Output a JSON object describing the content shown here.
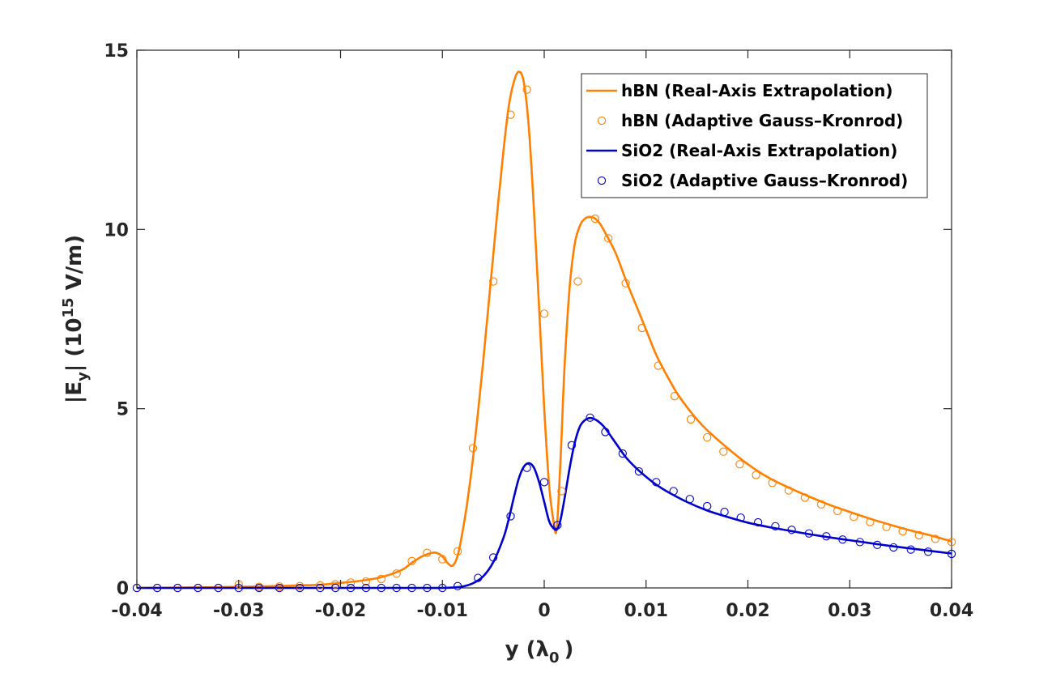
{
  "chart_data": {
    "type": "line",
    "xlabel": "y (λ",
    "xlabel_sub": "0",
    "xlabel_end": ")",
    "ylabel_parts": {
      "pre": "|E",
      "sub": "y",
      "mid": "| (10",
      "sup": "15",
      "post": " V/m)"
    },
    "xlim": [
      -0.04,
      0.04
    ],
    "ylim": [
      0,
      15
    ],
    "xticks": [
      -0.04,
      -0.03,
      -0.02,
      -0.01,
      0,
      0.01,
      0.02,
      0.03,
      0.04
    ],
    "xtick_labels": [
      "-0.04",
      "-0.03",
      "-0.02",
      "-0.01",
      "0",
      "0.01",
      "0.02",
      "0.03",
      "0.04"
    ],
    "yticks": [
      0,
      5,
      10,
      15
    ],
    "ytick_labels": [
      "0",
      "5",
      "10",
      "15"
    ],
    "grid": false,
    "legend_position": "top-right",
    "series": [
      {
        "name": "hBN (Real-Axis Extrapolation)",
        "style": "line",
        "color": "#ff8000",
        "x": [
          -0.04,
          -0.035,
          -0.03,
          -0.025,
          -0.022,
          -0.02,
          -0.018,
          -0.016,
          -0.014,
          -0.013,
          -0.012,
          -0.011,
          -0.0105,
          -0.01,
          -0.0095,
          -0.009,
          -0.0085,
          -0.008,
          -0.0075,
          -0.007,
          -0.0065,
          -0.006,
          -0.0055,
          -0.005,
          -0.0045,
          -0.004,
          -0.0035,
          -0.003,
          -0.0025,
          -0.002,
          -0.0015,
          -0.001,
          -0.0005,
          0,
          0.0005,
          0.001,
          0.0012,
          0.0014,
          0.0017,
          0.002,
          0.0025,
          0.003,
          0.0035,
          0.004,
          0.0045,
          0.005,
          0.0055,
          0.006,
          0.007,
          0.008,
          0.009,
          0.01,
          0.011,
          0.012,
          0.013,
          0.014,
          0.015,
          0.016,
          0.018,
          0.02,
          0.022,
          0.024,
          0.026,
          0.028,
          0.03,
          0.032,
          0.034,
          0.036,
          0.038,
          0.04
        ],
        "y": [
          0.0,
          0.01,
          0.03,
          0.06,
          0.09,
          0.14,
          0.2,
          0.3,
          0.5,
          0.7,
          0.88,
          0.98,
          0.97,
          0.88,
          0.7,
          0.62,
          0.9,
          1.6,
          2.5,
          3.6,
          4.9,
          6.3,
          7.8,
          9.3,
          10.8,
          12.2,
          13.4,
          14.1,
          14.4,
          14.1,
          12.8,
          10.5,
          7.8,
          5.0,
          2.8,
          1.7,
          1.6,
          2.4,
          4.2,
          6.2,
          8.4,
          9.6,
          10.1,
          10.3,
          10.35,
          10.3,
          10.15,
          9.9,
          9.35,
          8.6,
          7.9,
          7.2,
          6.5,
          5.95,
          5.45,
          5.05,
          4.7,
          4.4,
          3.9,
          3.45,
          3.08,
          2.8,
          2.55,
          2.32,
          2.12,
          1.93,
          1.76,
          1.6,
          1.46,
          1.3
        ]
      },
      {
        "name": "hBN (Adaptive Gauss–Kronrod)",
        "style": "markers",
        "color": "#ff8000",
        "x": [
          -0.04,
          -0.038,
          -0.036,
          -0.034,
          -0.032,
          -0.03,
          -0.028,
          -0.026,
          -0.024,
          -0.022,
          -0.0205,
          -0.019,
          -0.0175,
          -0.016,
          -0.0145,
          -0.013,
          -0.0115,
          -0.01,
          -0.0085,
          -0.007,
          -0.005,
          -0.0033,
          -0.0017,
          0,
          0.0017,
          0.0033,
          0.005,
          0.0063,
          0.008,
          0.0096,
          0.0112,
          0.0128,
          0.0144,
          0.016,
          0.0176,
          0.0192,
          0.0208,
          0.0224,
          0.024,
          0.0256,
          0.0272,
          0.0288,
          0.0304,
          0.032,
          0.0336,
          0.0352,
          0.0368,
          0.0384,
          0.04
        ],
        "y": [
          0.0,
          0.0,
          0.0,
          0.0,
          0.0,
          0.1,
          0.03,
          0.04,
          0.05,
          0.07,
          0.1,
          0.15,
          0.18,
          0.25,
          0.4,
          0.75,
          0.98,
          0.8,
          1.02,
          3.9,
          8.55,
          13.2,
          13.9,
          7.65,
          2.7,
          8.55,
          10.3,
          9.75,
          8.5,
          7.25,
          6.2,
          5.35,
          4.7,
          4.2,
          3.8,
          3.45,
          3.15,
          2.93,
          2.72,
          2.52,
          2.33,
          2.15,
          1.98,
          1.84,
          1.7,
          1.58,
          1.47,
          1.37,
          1.28
        ]
      },
      {
        "name": "SiO2 (Real-Axis Extrapolation)",
        "style": "line",
        "color": "#0000cc",
        "x": [
          -0.04,
          -0.03,
          -0.02,
          -0.012,
          -0.01,
          -0.009,
          -0.008,
          -0.007,
          -0.006,
          -0.005,
          -0.004,
          -0.0035,
          -0.003,
          -0.0025,
          -0.002,
          -0.0015,
          -0.001,
          -0.0005,
          0,
          0.0005,
          0.001,
          0.0013,
          0.0016,
          0.002,
          0.0025,
          0.003,
          0.0035,
          0.004,
          0.0045,
          0.005,
          0.0055,
          0.006,
          0.007,
          0.008,
          0.009,
          0.01,
          0.011,
          0.012,
          0.014,
          0.016,
          0.018,
          0.02,
          0.022,
          0.024,
          0.026,
          0.028,
          0.03,
          0.032,
          0.034,
          0.036,
          0.038,
          0.04
        ],
        "y": [
          0.0,
          0.0,
          0.0,
          0.0,
          0.0,
          0.01,
          0.04,
          0.13,
          0.32,
          0.72,
          1.4,
          1.9,
          2.5,
          3.05,
          3.38,
          3.48,
          3.35,
          2.95,
          2.4,
          1.85,
          1.64,
          1.65,
          1.9,
          2.5,
          3.35,
          4.05,
          4.5,
          4.68,
          4.74,
          4.7,
          4.6,
          4.45,
          4.05,
          3.65,
          3.35,
          3.1,
          2.88,
          2.7,
          2.4,
          2.16,
          1.98,
          1.82,
          1.7,
          1.6,
          1.5,
          1.41,
          1.33,
          1.25,
          1.17,
          1.1,
          1.03,
          0.96
        ]
      },
      {
        "name": "SiO2 (Adaptive Gauss–Kronrod)",
        "style": "markers",
        "color": "#0000cc",
        "x": [
          -0.04,
          -0.038,
          -0.036,
          -0.034,
          -0.032,
          -0.03,
          -0.028,
          -0.026,
          -0.024,
          -0.022,
          -0.0205,
          -0.019,
          -0.0175,
          -0.016,
          -0.0145,
          -0.013,
          -0.0115,
          -0.01,
          -0.0085,
          -0.0065,
          -0.005,
          -0.0033,
          -0.0017,
          0,
          0.0013,
          0.0027,
          0.0045,
          0.006,
          0.0077,
          0.0093,
          0.011,
          0.0127,
          0.0143,
          0.016,
          0.0177,
          0.0193,
          0.021,
          0.0227,
          0.0243,
          0.026,
          0.0277,
          0.0293,
          0.031,
          0.0327,
          0.0343,
          0.036,
          0.0377,
          0.04
        ],
        "y": [
          0.0,
          0.0,
          0.0,
          0.0,
          0.0,
          0.0,
          0.0,
          0.0,
          0.0,
          0.0,
          0.0,
          0.0,
          0.0,
          0.0,
          0.0,
          0.0,
          0.0,
          0.0,
          0.05,
          0.28,
          0.85,
          2.0,
          3.35,
          2.95,
          1.75,
          3.98,
          4.75,
          4.35,
          3.75,
          3.25,
          2.95,
          2.7,
          2.48,
          2.28,
          2.12,
          1.96,
          1.83,
          1.72,
          1.62,
          1.52,
          1.44,
          1.35,
          1.28,
          1.2,
          1.13,
          1.07,
          1.01,
          0.95
        ]
      }
    ]
  }
}
